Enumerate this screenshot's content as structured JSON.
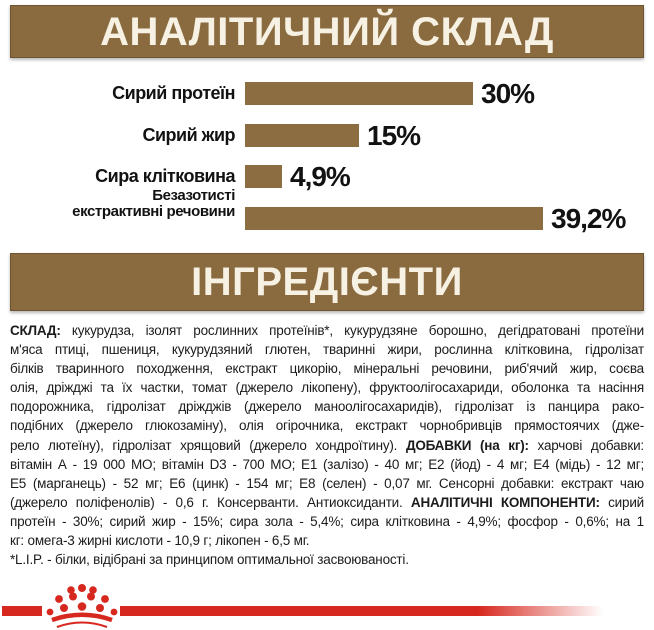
{
  "colors": {
    "banner_brown": "#8a6b40",
    "bar_brown": "#8c6d41",
    "banner_text": "#f7f1e3",
    "body_text": "#1b1b1b",
    "brand_red": "#d7281f",
    "background": "#ffffff"
  },
  "header": {
    "title": "АНАЛІТИЧНИЙ СКЛАД"
  },
  "chart_data": {
    "type": "bar",
    "orientation": "horizontal",
    "title": "АНАЛІТИЧНИЙ СКЛАД",
    "categories": [
      "Сирий протеїн",
      "Сирий жир",
      "Сира клітковина",
      "Безазотисті екстрактивні речовини"
    ],
    "category_lines": [
      [
        "Сирий протеїн"
      ],
      [
        "Сирий жир"
      ],
      [
        "Сира клітковина"
      ],
      [
        "Безазотисті",
        "екстрактивні речовини"
      ]
    ],
    "values": [
      30,
      15,
      4.9,
      39.2
    ],
    "value_labels": [
      "30%",
      "15%",
      "4,9%",
      "39,2%"
    ],
    "bar_color": "#8c6d41",
    "xlim": [
      0,
      42
    ],
    "grid": false,
    "legend": false
  },
  "ingredients_header": {
    "title": "ІНГРЕДІЄНТИ"
  },
  "ingredients": {
    "lines": [
      {
        "runs": [
          {
            "b": true,
            "t": "СКЛАД:"
          },
          {
            "b": false,
            "t": " кукурудза, ізолят рослинних протеїнів*, кукурудзяне борошно, дегідратовані протеїни"
          }
        ]
      },
      {
        "runs": [
          {
            "b": false,
            "t": "м'яса птиці, пшениця, кукурудзяний глютен, тваринні жири, рослинна клітковина, гідролізат"
          }
        ]
      },
      {
        "runs": [
          {
            "b": false,
            "t": "білків тваринного походження, екстракт цикорію, мінеральні речовини, риб'ячий жир, соєва"
          }
        ]
      },
      {
        "runs": [
          {
            "b": false,
            "t": "олія, дріжджі та їх частки, томат (джерело лікопену), фруктоолігосахариди, оболонка та насіння"
          }
        ]
      },
      {
        "runs": [
          {
            "b": false,
            "t": "подорожника, гідролізат дріжджів (джерело маноолігосахаридів), гідролізат із панцира рако-"
          }
        ]
      },
      {
        "runs": [
          {
            "b": false,
            "t": "подібних (джерело глюкозаміну), олія огірочника, екстракт чорнобривців прямостоячих (дже-"
          }
        ]
      },
      {
        "runs": [
          {
            "b": false,
            "t": "рело лютеїну), гідролізат хрящовий (джерело хондроїтину). "
          },
          {
            "b": true,
            "t": "ДОБАВКИ (на кг):"
          },
          {
            "b": false,
            "t": " харчові добавки:"
          }
        ]
      },
      {
        "runs": [
          {
            "b": false,
            "t": "вітамін А - 19 000 МО; вітамін D3 - 700 МО; Е1 (залізо) - 40 мг; Е2 (йод) - 4 мг; Е4 (мідь) - 12 мг;"
          }
        ]
      },
      {
        "runs": [
          {
            "b": false,
            "t": "Е5 (марганець) - 52 мг; Е6 (цинк) - 154 мг; Е8 (селен) - 0,07 мг. Сенсорні добавки: екстракт чаю"
          }
        ]
      },
      {
        "runs": [
          {
            "b": false,
            "t": "(джерело поліфенолів) - 0,6 г. Консерванти. Антиоксиданти. "
          },
          {
            "b": true,
            "t": "АНАЛІТИЧНІ КОМПОНЕНТИ:"
          },
          {
            "b": false,
            "t": " сирий"
          }
        ]
      },
      {
        "runs": [
          {
            "b": false,
            "t": "протеїн - 30%; сирий жир - 15%; сира зола - 5,4%; сира клітковина - 4,9%; фосфор - 0,6%; на 1"
          }
        ]
      },
      {
        "justify": false,
        "runs": [
          {
            "b": false,
            "t": "кг: омега-3 жирні кислоти - 10,9 г; лікопен - 6,5 мг."
          }
        ]
      },
      {
        "justify": false,
        "runs": [
          {
            "b": false,
            "t": "*L.I.P. - білки, відібрані за принципом оптимальної засвоюваності."
          }
        ]
      }
    ]
  },
  "footer": {
    "logo": "royal-canin-crown"
  }
}
